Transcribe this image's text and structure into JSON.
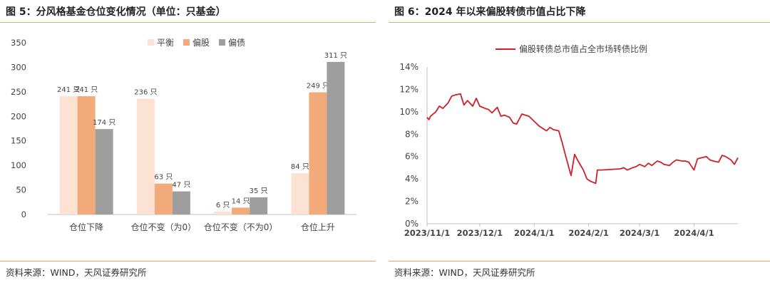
{
  "left_panel": {
    "title": "图 5：分风格基金仓位变化情况（单位：只基金）",
    "source": "资料来源：WIND，天风证券研究所"
  },
  "right_panel": {
    "title": "图 6：2024 年以来偏股转债市值占比下降",
    "source": "资料来源：WIND，天风证券研究所"
  },
  "colors": {
    "rule": "#e8a860",
    "series": [
      "#fce2d2",
      "#f2aa7a",
      "#9e9e9e"
    ],
    "line": "#d01f25",
    "axis": "#bfbfbf"
  },
  "chart_data": [
    {
      "type": "bar",
      "categories": [
        "仓位下降",
        "仓位不变（为0）",
        "仓位不变（不为0）",
        "仓位上升"
      ],
      "series": [
        {
          "name": "平衡",
          "values": [
            241,
            236,
            6,
            84
          ]
        },
        {
          "name": "偏股",
          "values": [
            241,
            63,
            14,
            249
          ]
        },
        {
          "name": "偏债",
          "values": [
            174,
            47,
            35,
            311
          ]
        }
      ],
      "data_label_suffix": "只",
      "ylim": [
        0,
        350
      ],
      "yticks": [
        0,
        50,
        100,
        150,
        200,
        250,
        300,
        350
      ],
      "legend_position": "top-center",
      "grid": false
    },
    {
      "type": "line",
      "series": [
        {
          "name": "偏股转债总市值占全市场转债比例",
          "x": [
            "2023-11-01",
            "2023-11-02",
            "2023-11-03",
            "2023-11-06",
            "2023-11-08",
            "2023-11-10",
            "2023-11-13",
            "2023-11-15",
            "2023-11-17",
            "2023-11-20",
            "2023-11-22",
            "2023-11-24",
            "2023-11-27",
            "2023-11-29",
            "2023-12-01",
            "2023-12-04",
            "2023-12-06",
            "2023-12-08",
            "2023-12-11",
            "2023-12-13",
            "2023-12-15",
            "2023-12-18",
            "2023-12-20",
            "2023-12-22",
            "2023-12-25",
            "2023-12-27",
            "2023-12-29",
            "2024-01-02",
            "2024-01-04",
            "2024-01-08",
            "2024-01-10",
            "2024-01-12",
            "2024-01-15",
            "2024-01-17",
            "2024-01-19",
            "2024-01-22",
            "2024-01-24",
            "2024-01-26",
            "2024-01-29",
            "2024-01-31",
            "2024-02-02",
            "2024-02-05",
            "2024-02-06",
            "2024-02-08",
            "2024-02-19",
            "2024-02-21",
            "2024-02-23",
            "2024-02-26",
            "2024-02-28",
            "2024-03-01",
            "2024-03-04",
            "2024-03-06",
            "2024-03-08",
            "2024-03-11",
            "2024-03-13",
            "2024-03-15",
            "2024-03-18",
            "2024-03-20",
            "2024-03-22",
            "2024-03-25",
            "2024-03-27",
            "2024-03-29",
            "2024-04-01",
            "2024-04-03",
            "2024-04-08",
            "2024-04-10",
            "2024-04-12",
            "2024-04-15",
            "2024-04-17",
            "2024-04-19",
            "2024-04-22",
            "2024-04-24",
            "2024-04-26"
          ],
          "values": [
            9.5,
            9.3,
            9.6,
            10.0,
            10.5,
            10.3,
            10.8,
            11.4,
            11.5,
            11.6,
            10.6,
            11.0,
            10.5,
            11.2,
            10.5,
            10.3,
            10.2,
            9.9,
            10.4,
            9.6,
            9.7,
            9.5,
            9.0,
            8.9,
            9.8,
            9.7,
            9.6,
            9.0,
            8.7,
            8.3,
            8.6,
            8.4,
            8.3,
            7.2,
            6.0,
            4.3,
            6.2,
            5.6,
            4.8,
            4.0,
            3.8,
            3.6,
            4.8,
            4.8,
            4.9,
            5.0,
            4.8,
            5.0,
            5.1,
            5.3,
            5.1,
            5.4,
            5.2,
            5.6,
            5.5,
            5.3,
            5.2,
            5.5,
            5.7,
            5.6,
            5.6,
            5.5,
            4.8,
            5.8,
            6.0,
            5.7,
            5.6,
            5.5,
            6.1,
            6.0,
            5.7,
            5.3,
            5.9
          ]
        }
      ],
      "x_ticks": [
        "2023/11/1",
        "2023/12/1",
        "2024/1/1",
        "2024/2/1",
        "2024/3/1",
        "2024/4/1"
      ],
      "x_tick_dates": [
        "2023-11-01",
        "2023-12-01",
        "2024-01-01",
        "2024-02-01",
        "2024-03-01",
        "2024-04-01"
      ],
      "y_ticks": [
        "0%",
        "2%",
        "4%",
        "6%",
        "8%",
        "10%",
        "12%",
        "14%"
      ],
      "ylim": [
        0,
        14
      ],
      "legend_position": "top-center",
      "grid": false
    }
  ]
}
